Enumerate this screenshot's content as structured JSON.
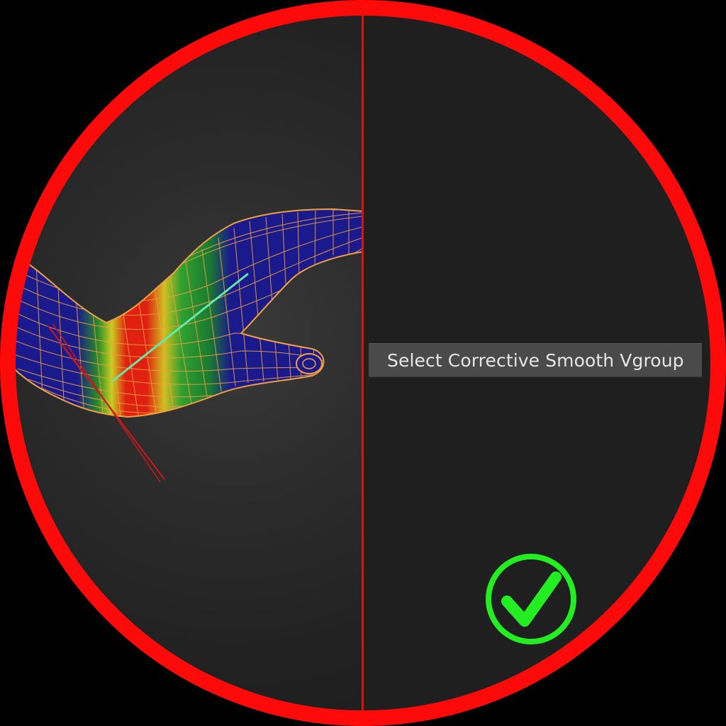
{
  "menu": {
    "item_label": "Select Corrective Smooth Vgroup"
  },
  "icons": {
    "confirm": "checkmark-circle-icon"
  },
  "colors": {
    "frame_border": "#ff0a0a",
    "divider": "#e01010",
    "checkmark": "#22ee22",
    "menu_background": "#4a4a4a",
    "menu_text": "#e6e6e6",
    "mesh_base": "#1a1a8c",
    "wireframe": "#f0a040"
  }
}
